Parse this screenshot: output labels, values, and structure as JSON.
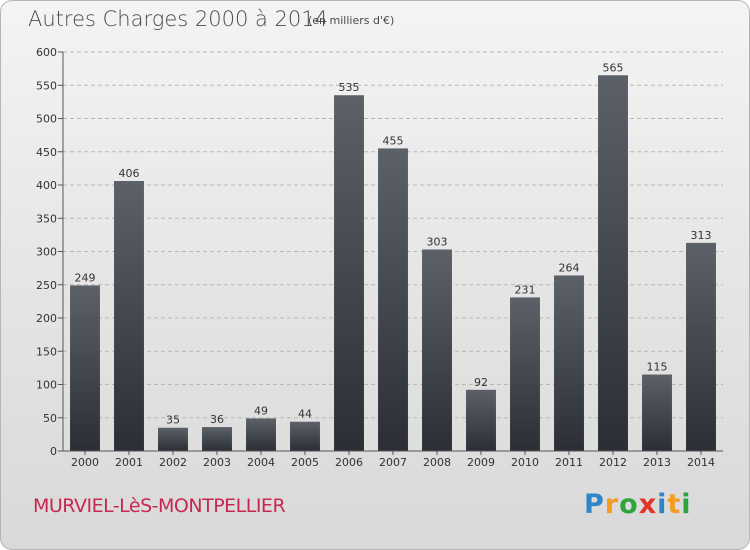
{
  "header": {
    "title": "Autres Charges 2000 à 2014",
    "subtitle": "(en milliers d'€)"
  },
  "footer": {
    "city": "MURVIEL-LèS-MONTPELLIER",
    "brand": "Proxiti",
    "brand_letters": [
      {
        "char": "P",
        "color": "#2e86c9"
      },
      {
        "char": "r",
        "color": "#f39c1f"
      },
      {
        "char": "o",
        "color": "#2ea43a"
      },
      {
        "char": "x",
        "color": "#e2342b"
      },
      {
        "char": "i",
        "color": "#2e86c9"
      },
      {
        "char": "t",
        "color": "#f39c1f"
      },
      {
        "char": "i",
        "color": "#2ea43a"
      }
    ]
  },
  "colors": {
    "bar_top": "#5c6168",
    "bar_bottom": "#2b2f35",
    "axis": "#555555",
    "grid": "#b8b8b8",
    "city": "#c8284f"
  },
  "chart_data": {
    "type": "bar",
    "categories": [
      "2000",
      "2001",
      "2002",
      "2003",
      "2004",
      "2005",
      "2006",
      "2007",
      "2008",
      "2009",
      "2010",
      "2011",
      "2012",
      "2013",
      "2014"
    ],
    "values": [
      249,
      406,
      35,
      36,
      49,
      44,
      535,
      455,
      303,
      92,
      231,
      264,
      565,
      115,
      313
    ],
    "yticks": [
      0,
      50,
      100,
      150,
      200,
      250,
      300,
      350,
      400,
      450,
      500,
      550,
      600
    ],
    "ylim": [
      0,
      600
    ],
    "title": "Autres Charges 2000 à 2014",
    "grid": true
  }
}
